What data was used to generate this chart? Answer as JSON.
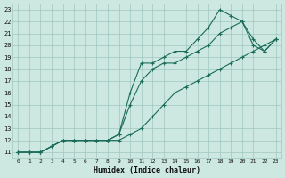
{
  "xlabel": "Humidex (Indice chaleur)",
  "ylabel": "",
  "x_values": [
    0,
    1,
    2,
    3,
    4,
    5,
    6,
    7,
    8,
    9,
    10,
    11,
    12,
    13,
    14,
    15,
    16,
    17,
    18,
    19,
    20,
    21,
    22,
    23
  ],
  "line_min": [
    11,
    11,
    11,
    11.5,
    12,
    12,
    12,
    12,
    12,
    12,
    12.5,
    13,
    14,
    15,
    16,
    16.5,
    17,
    17.5,
    18,
    18.5,
    19,
    19.5,
    20,
    20.5
  ],
  "line_mid": [
    11,
    11,
    11,
    11.5,
    12,
    12,
    12,
    12,
    12,
    12.5,
    15,
    17,
    18,
    18.5,
    18.5,
    19,
    19.5,
    20,
    21,
    21.5,
    22,
    20,
    19.5,
    20.5
  ],
  "line_max": [
    11,
    11,
    11,
    11.5,
    12,
    12,
    12,
    12,
    12,
    12.5,
    16,
    18.5,
    18.5,
    19,
    19.5,
    19.5,
    20.5,
    21.5,
    23,
    22.5,
    22,
    20.5,
    19.5,
    20.5
  ],
  "line_color": "#1a6b5a",
  "bg_color": "#cce8e0",
  "grid_color": "#a0c8be",
  "xlim": [
    -0.5,
    23.5
  ],
  "ylim": [
    10.5,
    23.5
  ],
  "yticks": [
    11,
    12,
    13,
    14,
    15,
    16,
    17,
    18,
    19,
    20,
    21,
    22,
    23
  ],
  "xticks": [
    0,
    1,
    2,
    3,
    4,
    5,
    6,
    7,
    8,
    9,
    10,
    11,
    12,
    13,
    14,
    15,
    16,
    17,
    18,
    19,
    20,
    21,
    22,
    23
  ]
}
